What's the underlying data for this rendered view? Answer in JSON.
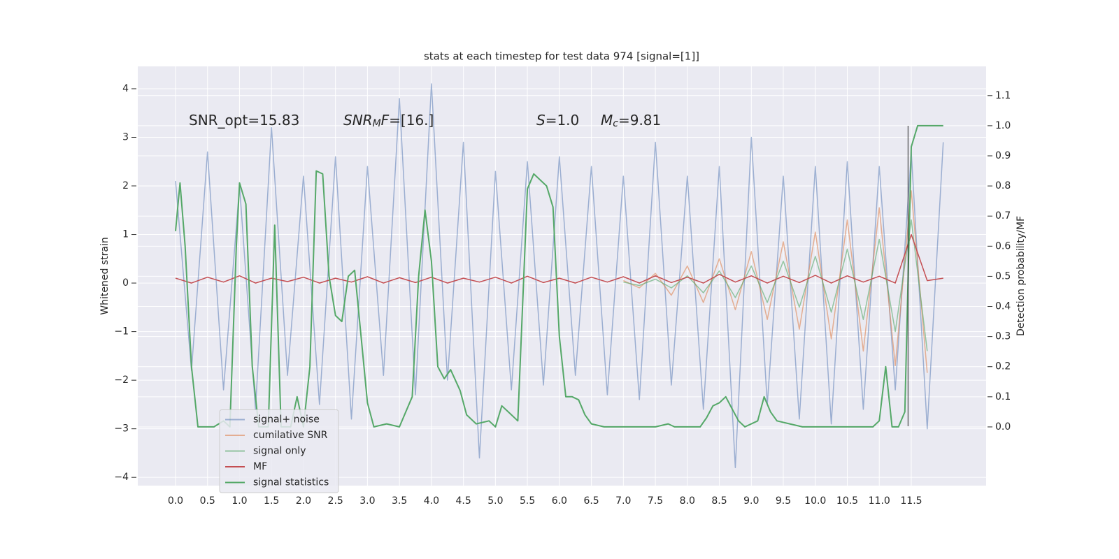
{
  "chart_data": {
    "type": "line",
    "title": "stats at each timestep for test data 974 [signal=[1]]",
    "ylabel": "Whitened strain",
    "y2label": "Detection probability/MF",
    "xlim": [
      -0.59,
      12.67
    ],
    "ylim": [
      -4.17,
      4.46
    ],
    "y2lim": [
      -0.195,
      1.197
    ],
    "xticks": [
      {
        "value": 0,
        "label": "0.0"
      },
      {
        "value": 0.5,
        "label": "0.5"
      },
      {
        "value": 1,
        "label": "1.0"
      },
      {
        "value": 1.5,
        "label": "1.5"
      },
      {
        "value": 2,
        "label": "2.0"
      },
      {
        "value": 2.5,
        "label": "2.5"
      },
      {
        "value": 3,
        "label": "3.0"
      },
      {
        "value": 3.5,
        "label": "3.5"
      },
      {
        "value": 4,
        "label": "4.0"
      },
      {
        "value": 4.5,
        "label": "4.5"
      },
      {
        "value": 5,
        "label": "5.0"
      },
      {
        "value": 5.5,
        "label": "5.5"
      },
      {
        "value": 6,
        "label": "6.0"
      },
      {
        "value": 6.5,
        "label": "6.5"
      },
      {
        "value": 7,
        "label": "7.0"
      },
      {
        "value": 7.5,
        "label": "7.5"
      },
      {
        "value": 8,
        "label": "8.0"
      },
      {
        "value": 8.5,
        "label": "8.5"
      },
      {
        "value": 9,
        "label": "9.0"
      },
      {
        "value": 9.5,
        "label": "9.5"
      },
      {
        "value": 10,
        "label": "10.0"
      },
      {
        "value": 10.5,
        "label": "10.5"
      },
      {
        "value": 11,
        "label": "11.0"
      },
      {
        "value": 11.5,
        "label": "11.5"
      }
    ],
    "yticks": [
      {
        "value": -4,
        "label": "−4"
      },
      {
        "value": -3,
        "label": "−3"
      },
      {
        "value": -2,
        "label": "−2"
      },
      {
        "value": -1,
        "label": "−1"
      },
      0,
      1,
      2,
      3,
      4
    ],
    "y2ticks": [
      {
        "value": 0,
        "label": "0.0"
      },
      {
        "value": 0.1,
        "label": "0.1"
      },
      {
        "value": 0.2,
        "label": "0.2"
      },
      {
        "value": 0.3,
        "label": "0.3"
      },
      {
        "value": 0.4,
        "label": "0.4"
      },
      {
        "value": 0.5,
        "label": "0.5"
      },
      {
        "value": 0.6,
        "label": "0.6"
      },
      {
        "value": 0.7,
        "label": "0.7"
      },
      {
        "value": 0.8,
        "label": "0.8"
      },
      {
        "value": 0.9,
        "label": "0.9"
      },
      {
        "value": 1,
        "label": "1.0"
      },
      {
        "value": 1.1,
        "label": "1.1"
      }
    ],
    "grid": true,
    "legend_loc": "lower left",
    "vline_x": 11.45,
    "annotations": [
      [
        {
          "text": "SNR_opt=15.83",
          "style": "normal"
        }
      ],
      [
        {
          "text": "SNR",
          "style": "italic"
        },
        {
          "text": "M",
          "style": "italic-sub"
        },
        {
          "text": "F",
          "style": "italic"
        },
        {
          "text": "=[16.]",
          "style": "normal"
        }
      ],
      [
        {
          "text": "S",
          "style": "italic"
        },
        {
          "text": "=1.0",
          "style": "normal"
        }
      ],
      [
        {
          "text": "M",
          "style": "italic"
        },
        {
          "text": "c",
          "style": "italic-sub"
        },
        {
          "text": "=9.81",
          "style": "normal"
        }
      ]
    ],
    "series": [
      {
        "name": "signal+ noise",
        "color": "#4c72b0",
        "opacity": 0.5,
        "axis": "y",
        "x": [
          0,
          0.25,
          0.5,
          0.75,
          1,
          1.25,
          1.5,
          1.75,
          2,
          2.25,
          2.5,
          2.75,
          3,
          3.25,
          3.5,
          3.75,
          4,
          4.25,
          4.5,
          4.75,
          5,
          5.25,
          5.5,
          5.75,
          6,
          6.25,
          6.5,
          6.75,
          7,
          7.25,
          7.5,
          7.75,
          8,
          8.25,
          8.5,
          8.75,
          9,
          9.25,
          9.5,
          9.75,
          10,
          10.25,
          10.5,
          10.75,
          11,
          11.25,
          11.5,
          11.75,
          12
        ],
        "values": [
          2.1,
          -1.8,
          2.7,
          -2.2,
          2.0,
          -2.6,
          3.2,
          -1.9,
          2.2,
          -2.5,
          2.6,
          -2.8,
          2.4,
          -1.9,
          3.8,
          -2.3,
          4.1,
          -2.0,
          2.9,
          -3.6,
          2.3,
          -2.2,
          2.5,
          -2.1,
          2.6,
          -1.9,
          2.4,
          -2.3,
          2.2,
          -2.4,
          2.9,
          -2.1,
          2.2,
          -2.6,
          2.4,
          -3.8,
          3.0,
          -2.5,
          2.2,
          -2.8,
          2.4,
          -2.9,
          2.5,
          -2.6,
          2.4,
          -2.2,
          2.7,
          -3.0,
          2.9
        ]
      },
      {
        "name": "cumilative SNR",
        "color": "#dd8452",
        "opacity": 0.6,
        "axis": "y",
        "x": [
          7,
          7.25,
          7.5,
          7.75,
          8,
          8.25,
          8.5,
          8.75,
          9,
          9.25,
          9.5,
          9.75,
          10,
          10.25,
          10.5,
          10.75,
          11,
          11.25,
          11.5,
          11.75
        ],
        "values": [
          0.05,
          -0.1,
          0.2,
          -0.25,
          0.35,
          -0.4,
          0.5,
          -0.55,
          0.65,
          -0.75,
          0.85,
          -0.95,
          1.05,
          -1.15,
          1.3,
          -1.4,
          1.55,
          -1.7,
          1.9,
          -1.85
        ]
      },
      {
        "name": "signal only",
        "color": "#55a868",
        "opacity": 0.6,
        "axis": "y",
        "x": [
          7,
          7.25,
          7.5,
          7.75,
          8,
          8.25,
          8.5,
          8.75,
          9,
          9.25,
          9.5,
          9.75,
          10,
          10.25,
          10.5,
          10.75,
          11,
          11.25,
          11.5,
          11.75
        ],
        "values": [
          0.02,
          -0.05,
          0.08,
          -0.1,
          0.15,
          -0.2,
          0.25,
          -0.3,
          0.35,
          -0.4,
          0.45,
          -0.5,
          0.55,
          -0.6,
          0.7,
          -0.75,
          0.9,
          -1.0,
          1.3,
          -1.4
        ]
      },
      {
        "name": "MF",
        "color": "#c44e52",
        "opacity": 1,
        "axis": "y",
        "x": [
          0,
          0.25,
          0.5,
          0.75,
          1,
          1.25,
          1.5,
          1.75,
          2,
          2.25,
          2.5,
          2.75,
          3,
          3.25,
          3.5,
          3.75,
          4,
          4.25,
          4.5,
          4.75,
          5,
          5.25,
          5.5,
          5.75,
          6,
          6.25,
          6.5,
          6.75,
          7,
          7.25,
          7.5,
          7.75,
          8,
          8.25,
          8.5,
          8.75,
          9,
          9.25,
          9.5,
          9.75,
          10,
          10.25,
          10.5,
          10.75,
          11,
          11.25,
          11.5,
          11.75,
          12
        ],
        "values": [
          0.1,
          0.0,
          0.12,
          0.02,
          0.15,
          0.0,
          0.1,
          0.03,
          0.12,
          0.0,
          0.1,
          0.02,
          0.13,
          0.0,
          0.11,
          0.01,
          0.12,
          0.0,
          0.1,
          0.02,
          0.12,
          0.0,
          0.14,
          0.01,
          0.1,
          0.0,
          0.12,
          0.02,
          0.13,
          0.0,
          0.15,
          0.01,
          0.12,
          0.0,
          0.18,
          0.02,
          0.15,
          0.0,
          0.14,
          0.01,
          0.16,
          0.0,
          0.15,
          0.02,
          0.14,
          0.0,
          1.0,
          0.05,
          0.1
        ]
      },
      {
        "name": "signal statistics",
        "color": "#55a868",
        "opacity": 1,
        "axis": "y2",
        "x": [
          0,
          0.07,
          0.15,
          0.25,
          0.35,
          0.5,
          0.6,
          0.75,
          0.85,
          0.95,
          1.0,
          1.1,
          1.2,
          1.3,
          1.45,
          1.55,
          1.65,
          1.8,
          1.9,
          2.0,
          2.1,
          2.2,
          2.3,
          2.4,
          2.5,
          2.6,
          2.7,
          2.8,
          2.9,
          3.0,
          3.1,
          3.3,
          3.5,
          3.7,
          3.8,
          3.9,
          4.0,
          4.1,
          4.2,
          4.3,
          4.45,
          4.55,
          4.7,
          4.9,
          5.0,
          5.1,
          5.2,
          5.35,
          5.5,
          5.6,
          5.8,
          5.9,
          6.0,
          6.1,
          6.2,
          6.3,
          6.4,
          6.5,
          6.7,
          7.0,
          7.5,
          7.7,
          7.8,
          8.2,
          8.3,
          8.4,
          8.5,
          8.6,
          8.7,
          8.8,
          8.9,
          9.1,
          9.2,
          9.3,
          9.4,
          9.6,
          9.8,
          10.5,
          10.9,
          11.0,
          11.1,
          11.2,
          11.3,
          11.4,
          11.5,
          11.6,
          11.7,
          12.0
        ],
        "values": [
          0.65,
          0.81,
          0.6,
          0.2,
          0.0,
          0.0,
          0.0,
          0.02,
          0.0,
          0.6,
          0.81,
          0.74,
          0.2,
          0.0,
          0.0,
          0.67,
          0.0,
          0.0,
          0.1,
          0.0,
          0.2,
          0.85,
          0.84,
          0.5,
          0.37,
          0.35,
          0.5,
          0.52,
          0.3,
          0.08,
          0.0,
          0.01,
          0.0,
          0.1,
          0.5,
          0.72,
          0.55,
          0.2,
          0.16,
          0.19,
          0.12,
          0.04,
          0.01,
          0.02,
          0.0,
          0.07,
          0.05,
          0.02,
          0.79,
          0.84,
          0.8,
          0.73,
          0.3,
          0.1,
          0.1,
          0.09,
          0.04,
          0.01,
          0.0,
          0.0,
          0.0,
          0.01,
          0.0,
          0.0,
          0.03,
          0.07,
          0.08,
          0.1,
          0.06,
          0.02,
          0.0,
          0.02,
          0.1,
          0.05,
          0.02,
          0.01,
          0.0,
          0.0,
          0.0,
          0.02,
          0.2,
          0.0,
          0.0,
          0.05,
          0.93,
          1.0,
          1.0,
          1.0
        ]
      }
    ]
  }
}
